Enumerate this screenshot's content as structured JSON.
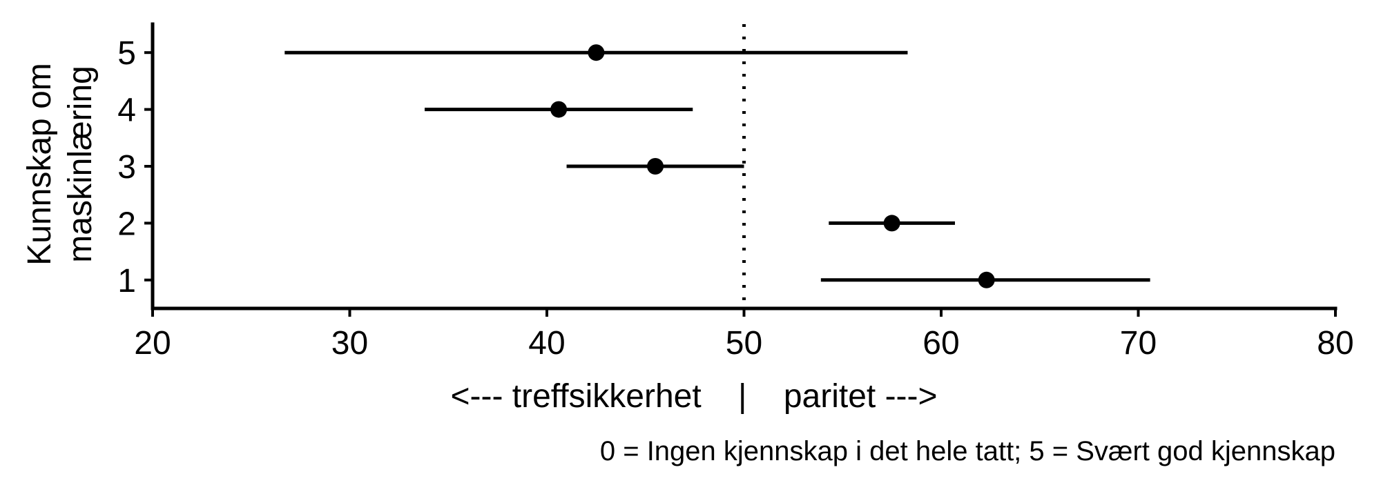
{
  "chart_data": {
    "type": "scatter",
    "subtype": "point-range",
    "ylabel_lines": [
      "Kunnskap om",
      "maskinlæring"
    ],
    "xlabel": "<--- treffsikkerhet    |    paritet --->",
    "caption": "0 = Ingen kjennskap i det hele tatt; 5 = Svært god kjennskap",
    "xlim": [
      20,
      80
    ],
    "ylim": [
      0.5,
      5.5
    ],
    "x_ticks": [
      20,
      30,
      40,
      50,
      60,
      70,
      80
    ],
    "y_ticks": [
      1,
      2,
      3,
      4,
      5
    ],
    "reference_line_x": 50,
    "reference_line_style": "dotted",
    "grid": false,
    "points": [
      {
        "category": "5",
        "y": 5,
        "x": 42.5,
        "low": 26.7,
        "high": 58.3
      },
      {
        "category": "4",
        "y": 4,
        "x": 40.6,
        "low": 33.8,
        "high": 47.4
      },
      {
        "category": "3",
        "y": 3,
        "x": 45.5,
        "low": 41.0,
        "high": 50.0
      },
      {
        "category": "2",
        "y": 2,
        "x": 57.5,
        "low": 54.3,
        "high": 60.7
      },
      {
        "category": "1",
        "y": 1,
        "x": 62.3,
        "low": 53.9,
        "high": 70.6
      }
    ],
    "colors": {
      "marks": "#000000",
      "background": "#ffffff"
    }
  }
}
